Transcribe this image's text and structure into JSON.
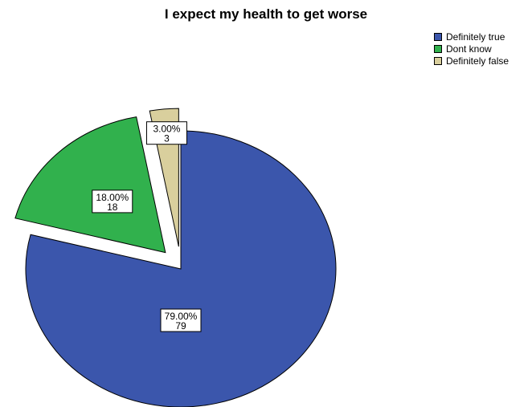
{
  "chart_data": {
    "type": "pie",
    "title": "I expect my health to get worse",
    "categories": [
      "Definitely true",
      "Dont know",
      "Definitely false"
    ],
    "values": [
      79,
      18,
      3
    ],
    "percent_labels": [
      "79.00%",
      "18.00%",
      "3.00%"
    ],
    "count_labels": [
      "79",
      "18",
      "3"
    ],
    "colors": [
      "#3B56AC",
      "#31B14D",
      "#D9CF9D"
    ],
    "exploded": [
      false,
      true,
      true
    ],
    "legend_position": "top-right"
  }
}
